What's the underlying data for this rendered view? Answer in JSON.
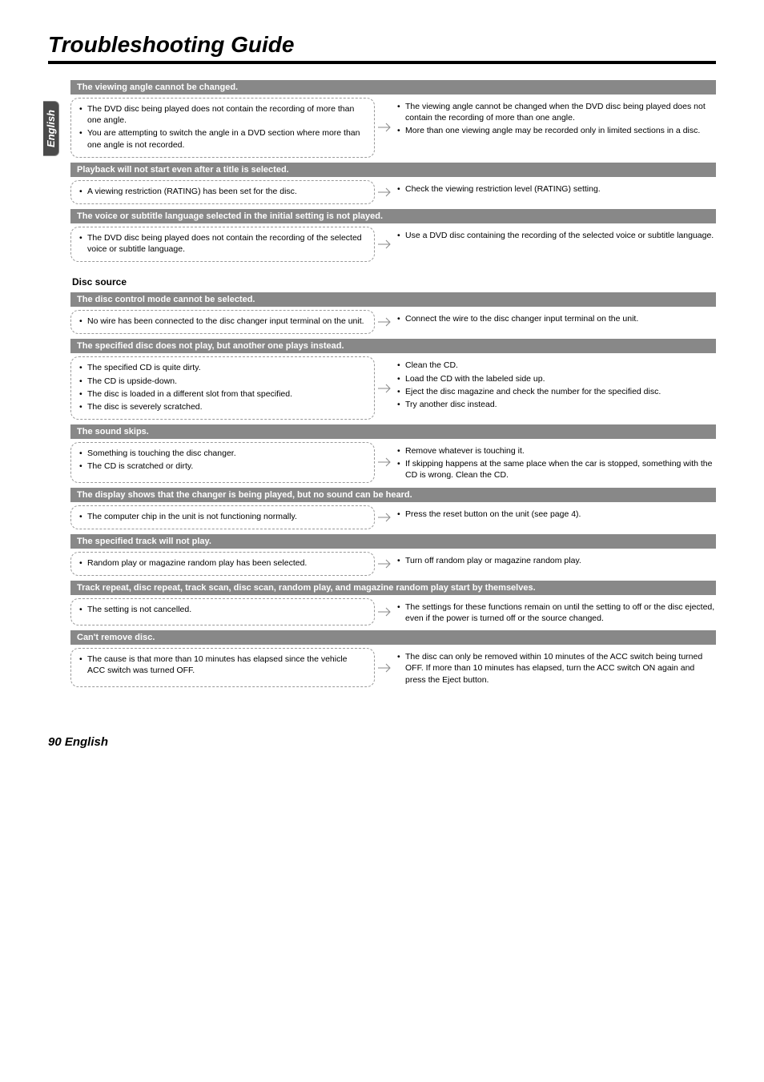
{
  "page": {
    "title": "Troubleshooting Guide",
    "footer": "90 English",
    "side_tab": "English"
  },
  "colors": {
    "symptom_bg": "#888888",
    "symptom_fg": "#ffffff",
    "dash_border": "#999999",
    "tab_bg": "#4a4a4a",
    "arrow_stroke": "#888888"
  },
  "blocks": [
    {
      "symptom": "The viewing angle cannot be changed.",
      "causes": [
        "The DVD disc being played does not contain the recording of more than one angle.",
        "You are attempting to switch the angle in a DVD section where more than one angle is not recorded."
      ],
      "remedies": [
        "The viewing angle cannot be changed when the DVD disc being played does not contain the recording of more than one angle.",
        "More than one viewing angle may be recorded only in limited sections in a disc."
      ]
    },
    {
      "symptom": "Playback will not start even after a title is selected.",
      "causes": [
        "A viewing restriction (RATING) has been set for the disc."
      ],
      "remedies": [
        "Check the viewing restriction level (RATING) setting."
      ]
    },
    {
      "symptom": "The voice or subtitle language selected in the initial setting is not played.",
      "causes": [
        "The DVD disc being played does not contain the recording of the selected voice or subtitle language."
      ],
      "remedies": [
        "Use a DVD disc containing the recording of the selected voice or subtitle language."
      ]
    }
  ],
  "disc_heading": "Disc source",
  "disc_blocks": [
    {
      "symptom": "The disc control mode cannot be selected.",
      "causes": [
        "No wire has been connected to the disc changer input terminal on the unit."
      ],
      "remedies": [
        "Connect the wire to the disc changer input terminal on the unit."
      ]
    },
    {
      "symptom": "The specified disc does not play, but another one plays instead.",
      "causes": [
        "The specified CD is quite dirty.",
        "The CD is upside-down.",
        "The disc is loaded in a different slot from that specified.",
        "The disc is severely scratched."
      ],
      "remedies": [
        "Clean the CD.",
        "Load the CD with the labeled side up.",
        "Eject the disc magazine and check the number for the specified disc.",
        "Try another disc instead."
      ]
    },
    {
      "symptom": "The sound skips.",
      "causes": [
        "Something is touching the disc changer.",
        "The CD is scratched or dirty."
      ],
      "remedies": [
        "Remove whatever is touching it.",
        "If skipping happens at the same place when the car is stopped, something with the CD is wrong. Clean the CD."
      ]
    },
    {
      "symptom": "The display shows that the changer is being played, but no sound can be heard.",
      "causes": [
        "The computer chip in the unit is not functioning normally."
      ],
      "remedies": [
        "Press the reset button on the unit (see page 4)."
      ]
    },
    {
      "symptom": "The specified track will not play.",
      "causes": [
        "Random play or magazine random play has been selected."
      ],
      "remedies": [
        "Turn off random play or magazine random play."
      ]
    },
    {
      "symptom": "Track repeat, disc repeat, track scan, disc scan, random play, and magazine random play start by themselves.",
      "causes": [
        "The setting is not cancelled."
      ],
      "remedies": [
        "The settings for these functions remain on until the setting to off or the disc ejected, even if the power is turned off or the source changed."
      ]
    },
    {
      "symptom": "Can't remove disc.",
      "causes": [
        "The cause is that more than 10 minutes has elapsed since the vehicle ACC switch was turned OFF."
      ],
      "remedies": [
        "The disc can only be removed within 10 minutes of the ACC switch being turned OFF. If more than 10 minutes has elapsed, turn the ACC switch ON again and press the Eject button."
      ]
    }
  ]
}
